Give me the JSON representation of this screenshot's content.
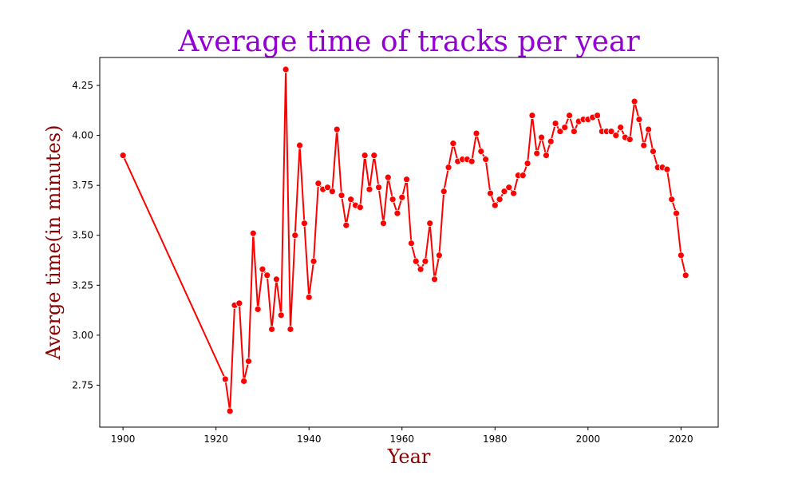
{
  "colors": {
    "title": "#9400d3",
    "axis_title": "#8b0000",
    "series": "#ff0000",
    "frame": "#000000"
  },
  "chart_data": {
    "type": "line",
    "title": "Average time of tracks per year",
    "xlabel": "Year",
    "ylabel": "Averge time(in minutes)",
    "xlim": [
      1895,
      2028
    ],
    "ylim": [
      2.54,
      4.39
    ],
    "xticks": [
      1900,
      1920,
      1940,
      1960,
      1980,
      2000,
      2020
    ],
    "yticks": [
      2.75,
      3.0,
      3.25,
      3.5,
      3.75,
      4.0,
      4.25
    ],
    "grid": false,
    "marker": "circle",
    "series": [
      {
        "x": [
          1900,
          1922,
          1923,
          1924,
          1925,
          1926,
          1927,
          1928,
          1929,
          1930,
          1931,
          1932,
          1933,
          1934,
          1935,
          1936,
          1937,
          1938,
          1939,
          1940,
          1941,
          1942,
          1943,
          1944,
          1945,
          1946,
          1947,
          1948,
          1949,
          1950,
          1951,
          1952,
          1953,
          1954,
          1955,
          1956,
          1957,
          1958,
          1959,
          1960,
          1961,
          1962,
          1963,
          1964,
          1965,
          1966,
          1967,
          1968,
          1969,
          1970,
          1971,
          1972,
          1973,
          1974,
          1975,
          1976,
          1977,
          1978,
          1979,
          1980,
          1981,
          1982,
          1983,
          1984,
          1985,
          1986,
          1987,
          1988,
          1989,
          1990,
          1991,
          1992,
          1993,
          1994,
          1995,
          1996,
          1997,
          1998,
          1999,
          2000,
          2001,
          2002,
          2003,
          2004,
          2005,
          2006,
          2007,
          2008,
          2009,
          2010,
          2011,
          2012,
          2013,
          2014,
          2015,
          2016,
          2017,
          2018,
          2019,
          2020,
          2021
        ],
        "values": [
          3.9,
          2.78,
          2.62,
          3.15,
          3.16,
          2.77,
          2.87,
          3.51,
          3.13,
          3.33,
          3.3,
          3.03,
          3.28,
          3.1,
          4.33,
          3.03,
          3.5,
          3.95,
          3.56,
          3.19,
          3.37,
          3.76,
          3.73,
          3.74,
          3.72,
          4.03,
          3.7,
          3.55,
          3.68,
          3.65,
          3.64,
          3.9,
          3.73,
          3.9,
          3.74,
          3.56,
          3.79,
          3.68,
          3.61,
          3.69,
          3.78,
          3.46,
          3.37,
          3.33,
          3.37,
          3.56,
          3.28,
          3.4,
          3.72,
          3.84,
          3.96,
          3.87,
          3.88,
          3.88,
          3.87,
          4.01,
          3.92,
          3.88,
          3.71,
          3.65,
          3.68,
          3.72,
          3.74,
          3.71,
          3.8,
          3.8,
          3.86,
          4.1,
          3.91,
          3.99,
          3.9,
          3.97,
          4.06,
          4.02,
          4.04,
          4.1,
          4.02,
          4.07,
          4.08,
          4.08,
          4.09,
          4.1,
          4.02,
          4.02,
          4.02,
          4.0,
          4.04,
          3.99,
          3.98,
          4.17,
          4.08,
          3.95,
          4.03,
          3.92,
          3.84,
          3.84,
          3.83,
          3.68,
          3.61,
          3.4,
          3.3
        ]
      }
    ]
  }
}
